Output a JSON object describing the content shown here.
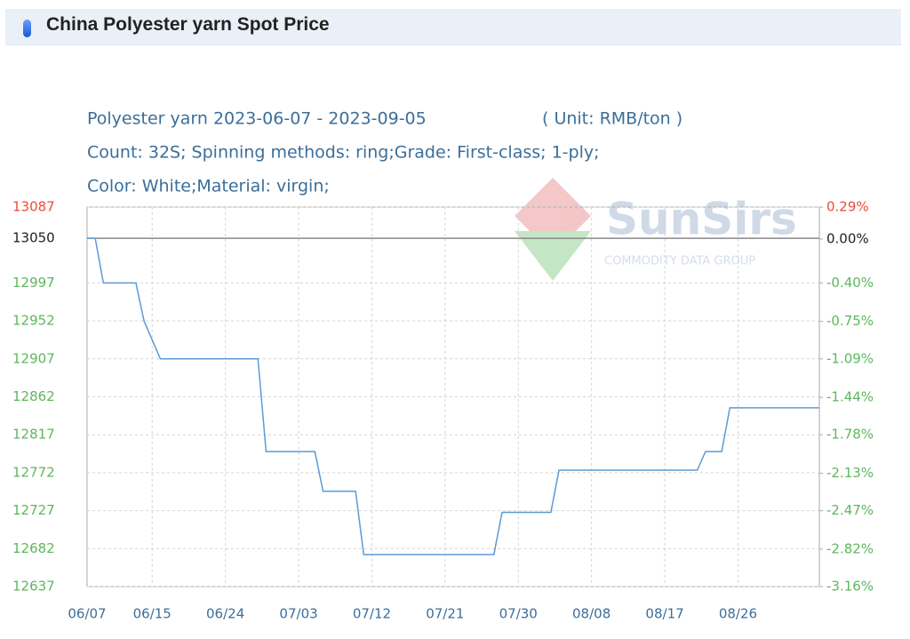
{
  "header": {
    "title": "China Polyester yarn Spot Price"
  },
  "chart_data": {
    "type": "line",
    "title": "Polyester yarn 2023-06-07 - 2023-09-05",
    "unit": "( Unit: RMB/ton )",
    "subtitle": [
      "Count: 32S; Spinning methods: ring;Grade: First-class; 1-ply;",
      "Color: White;Material: virgin;"
    ],
    "watermark": {
      "brand": "SunSirs",
      "tagline": "COMMODITY DATA GROUP"
    },
    "x": [
      "06/07",
      "06/08",
      "06/09",
      "06/13",
      "06/14",
      "06/16",
      "06/28",
      "06/29",
      "07/05",
      "07/06",
      "07/10",
      "07/11",
      "07/27",
      "07/28",
      "08/03",
      "08/04",
      "08/21",
      "08/22",
      "08/24",
      "08/25",
      "09/05"
    ],
    "series": [
      {
        "name": "Polyester yarn",
        "color": "#5b9bd5",
        "values": [
          13050,
          13050,
          12997,
          12997,
          12952,
          12907,
          12907,
          12797,
          12797,
          12750,
          12750,
          12675,
          12675,
          12725,
          12725,
          12775,
          12775,
          12797,
          12797,
          12849,
          12849
        ]
      }
    ],
    "xlim": [
      "06/07",
      "09/05"
    ],
    "xticks": [
      "06/07",
      "06/15",
      "06/24",
      "07/03",
      "07/12",
      "07/21",
      "07/30",
      "08/08",
      "08/17",
      "08/26"
    ],
    "ylim": [
      12637,
      13087
    ],
    "yticks": [
      13087,
      13050,
      12997,
      12952,
      12907,
      12862,
      12817,
      12772,
      12727,
      12682,
      12637
    ],
    "y2lim": [
      -3.16,
      0.29
    ],
    "y2ticks": [
      {
        "value": 0.29,
        "label": "0.29%"
      },
      {
        "value": 0,
        "label": "0.00%"
      },
      {
        "value": -0.4,
        "label": "-0.40%"
      },
      {
        "value": -0.75,
        "label": "-0.75%"
      },
      {
        "value": -1.09,
        "label": "-1.09%"
      },
      {
        "value": -1.44,
        "label": "-1.44%"
      },
      {
        "value": -1.78,
        "label": "-1.78%"
      },
      {
        "value": -2.13,
        "label": "-2.13%"
      },
      {
        "value": -2.47,
        "label": "-2.47%"
      },
      {
        "value": -2.82,
        "label": "-2.82%"
      },
      {
        "value": -3.16,
        "label": "-3.16%"
      }
    ],
    "grid": true
  }
}
